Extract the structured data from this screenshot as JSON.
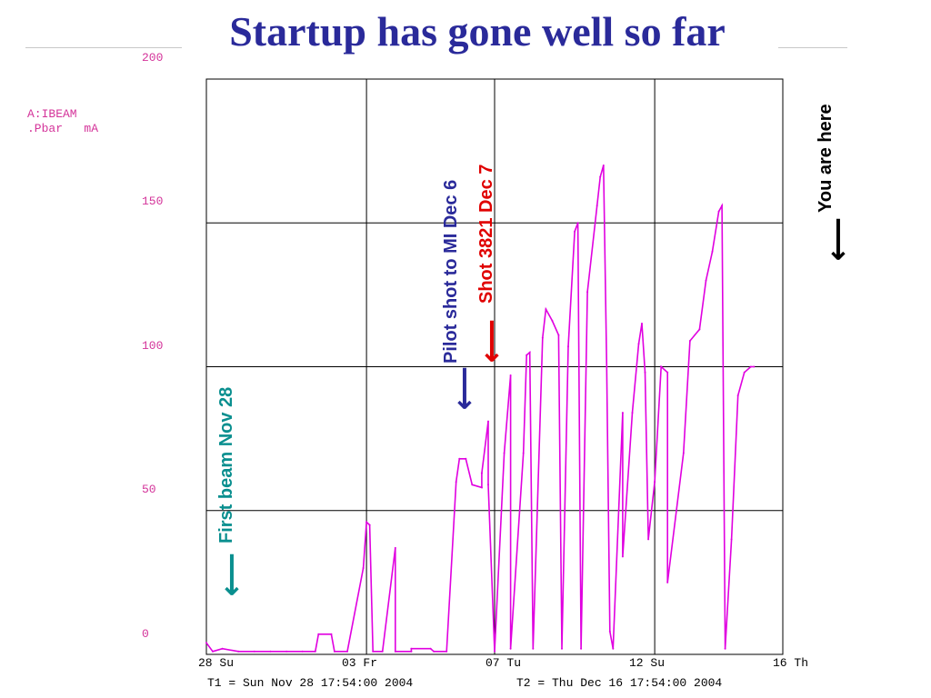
{
  "title": "Startup has gone well so far",
  "chart_data": {
    "type": "line",
    "device_label": "A:IBEAM\n.Pbar   mA",
    "ylim": [
      0,
      200
    ],
    "yticks": [
      "200",
      "150",
      "100",
      "50",
      "0"
    ],
    "ytick_values": [
      200,
      150,
      100,
      50,
      0
    ],
    "xlim_days": [
      0,
      18
    ],
    "xticks": [
      {
        "label": "28 Su",
        "day": 0
      },
      {
        "label": "03 Fr",
        "day": 5
      },
      {
        "label": "07 Tu",
        "day": 9
      },
      {
        "label": "12 Su",
        "day": 14
      },
      {
        "label": "16 Th",
        "day": 18
      }
    ],
    "t1": "T1 = Sun Nov 28 17:54:00 2004",
    "t2": "T2 = Thu Dec 16 17:54:00 2004",
    "grid": true,
    "series_color": "#e000e0",
    "series": [
      {
        "name": "",
        "points": [
          [
            0.0,
            4
          ],
          [
            0.2,
            1
          ],
          [
            0.5,
            2
          ],
          [
            1.0,
            1
          ],
          [
            1.5,
            1
          ],
          [
            2.0,
            1
          ],
          [
            2.5,
            1
          ],
          [
            3.0,
            1
          ],
          [
            3.4,
            1
          ],
          [
            3.5,
            7
          ],
          [
            3.9,
            7
          ],
          [
            4.0,
            1
          ],
          [
            4.4,
            1
          ],
          [
            4.9,
            30
          ],
          [
            5.0,
            46
          ],
          [
            5.1,
            45
          ],
          [
            5.2,
            1
          ],
          [
            5.5,
            1
          ],
          [
            5.9,
            37
          ],
          [
            5.9,
            1
          ],
          [
            6.4,
            1
          ],
          [
            6.4,
            2
          ],
          [
            7.0,
            2
          ],
          [
            7.1,
            1
          ],
          [
            7.5,
            1
          ],
          [
            7.8,
            60
          ],
          [
            7.9,
            68
          ],
          [
            8.1,
            68
          ],
          [
            8.3,
            59
          ],
          [
            8.6,
            58
          ],
          [
            8.6,
            63
          ],
          [
            8.8,
            81
          ],
          [
            8.8,
            59
          ],
          [
            9.0,
            1
          ],
          [
            9.3,
            70
          ],
          [
            9.5,
            97
          ],
          [
            9.5,
            2
          ],
          [
            9.9,
            70
          ],
          [
            10.0,
            104
          ],
          [
            10.1,
            105
          ],
          [
            10.2,
            2
          ],
          [
            10.5,
            110
          ],
          [
            10.6,
            120
          ],
          [
            10.8,
            116
          ],
          [
            11.0,
            111
          ],
          [
            11.1,
            2
          ],
          [
            11.3,
            107
          ],
          [
            11.5,
            147
          ],
          [
            11.6,
            150
          ],
          [
            11.7,
            2
          ],
          [
            11.9,
            126
          ],
          [
            12.2,
            156
          ],
          [
            12.3,
            166
          ],
          [
            12.4,
            170
          ],
          [
            12.5,
            100
          ],
          [
            12.6,
            8
          ],
          [
            12.7,
            2
          ],
          [
            13.0,
            84
          ],
          [
            13.0,
            34
          ],
          [
            13.3,
            84
          ],
          [
            13.5,
            108
          ],
          [
            13.6,
            115
          ],
          [
            13.7,
            98
          ],
          [
            13.8,
            40
          ],
          [
            14.0,
            60
          ],
          [
            14.2,
            100
          ],
          [
            14.4,
            98
          ],
          [
            14.4,
            25
          ],
          [
            14.9,
            70
          ],
          [
            15.1,
            109
          ],
          [
            15.4,
            113
          ],
          [
            15.6,
            130
          ],
          [
            15.8,
            140
          ],
          [
            16.0,
            154
          ],
          [
            16.1,
            156
          ],
          [
            16.2,
            2
          ],
          [
            16.4,
            40
          ],
          [
            16.6,
            90
          ],
          [
            16.8,
            98
          ],
          [
            17.0,
            100
          ],
          [
            17.1,
            100
          ]
        ]
      }
    ]
  },
  "annotations": {
    "first_beam": "First beam Nov 28",
    "pilot_shot": "Pilot shot to MI Dec 6",
    "shot_3821": "Shot 3821 Dec 7",
    "you_are_here": "You are here",
    "arrow_glyph": "⟵",
    "colors": {
      "first_beam": "#0a8f8f",
      "pilot_shot": "#2a2a9a",
      "shot_3821": "#e00000",
      "you_are_here": "#000000"
    }
  }
}
